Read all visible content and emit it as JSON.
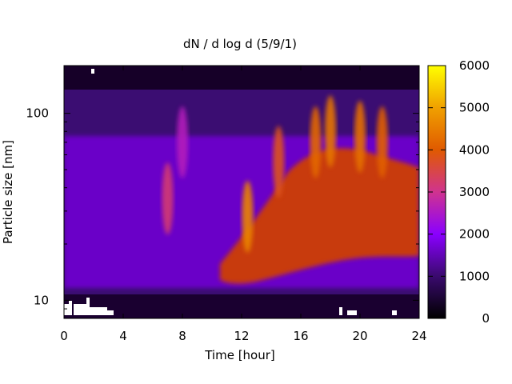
{
  "chart_data": {
    "type": "heatmap",
    "title": "dN / d log d (5/9/1)",
    "xlabel": "Time [hour]",
    "ylabel": "Particle size [nm]",
    "xlim": [
      0,
      24
    ],
    "ylim": [
      8,
      180
    ],
    "y_scale": "log",
    "x_ticks": [
      0,
      4,
      8,
      12,
      16,
      20,
      24
    ],
    "x_tick_labels": [
      "0",
      "4",
      "8",
      "12",
      "16",
      "20",
      "24"
    ],
    "y_ticks": [
      10,
      100
    ],
    "y_tick_labels": [
      "10",
      "100"
    ],
    "colorbar": {
      "range": [
        0,
        6000
      ],
      "ticks": [
        0,
        1000,
        2000,
        3000,
        4000,
        5000,
        6000
      ],
      "tick_labels": [
        "0",
        "1000",
        "2000",
        "3000",
        "4000",
        "5000",
        "6000"
      ],
      "colormap": [
        "#000000",
        "#3a0a6e",
        "#8a00ff",
        "#d0338f",
        "#e05a00",
        "#f0a000",
        "#ffff00"
      ]
    },
    "grid": false,
    "events": [
      {
        "x": 7.0,
        "y": 35,
        "value": 3200
      },
      {
        "x": 8.0,
        "y": 70,
        "value": 2600
      },
      {
        "x": 12.4,
        "y": 28,
        "value": 4600
      },
      {
        "x": 14.5,
        "y": 55,
        "value": 3800
      },
      {
        "x": 17.0,
        "y": 70,
        "value": 4200
      },
      {
        "x": 18.0,
        "y": 80,
        "value": 4400
      },
      {
        "x": 20.0,
        "y": 75,
        "value": 4300
      },
      {
        "x": 21.5,
        "y": 70,
        "value": 4100
      }
    ]
  }
}
